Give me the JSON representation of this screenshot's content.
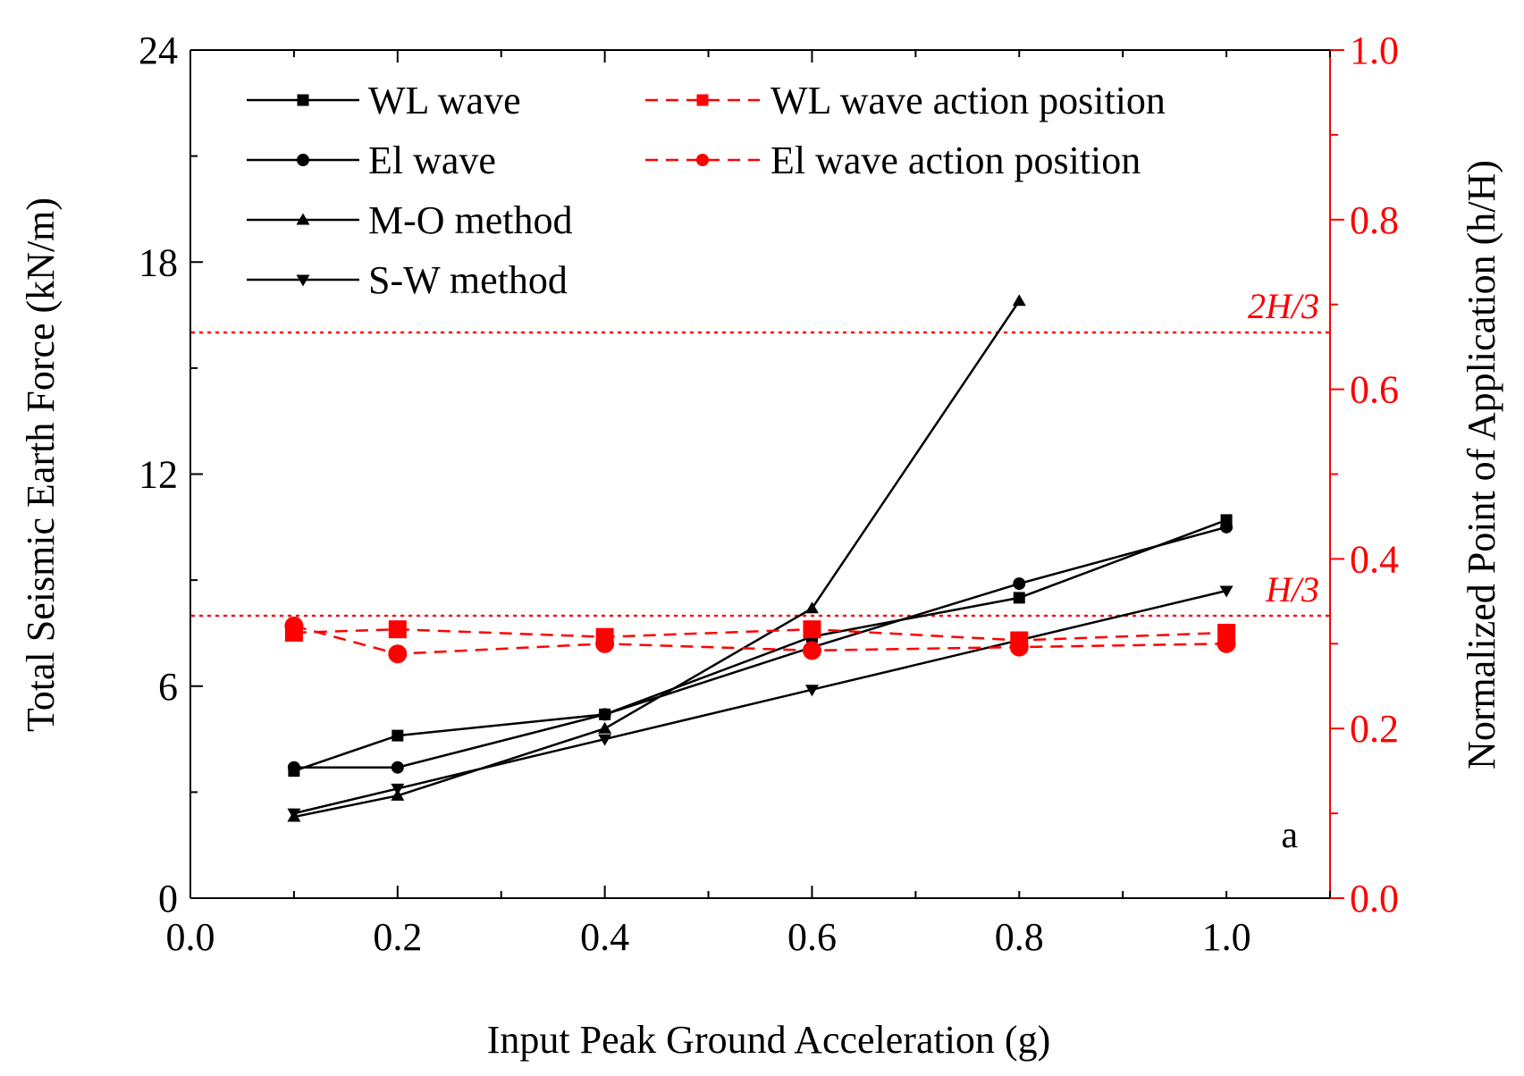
{
  "chart_data": {
    "type": "line",
    "panel_label": "a",
    "xlabel": "Input Peak Ground Acceleration (g)",
    "ylabel": "Total Seismic Earth Force  (kN/m)",
    "y2label": "Normalized Point of Application (h/H)",
    "xlim": [
      0.0,
      1.1
    ],
    "ylim": [
      0,
      24
    ],
    "y2lim": [
      0.0,
      1.0
    ],
    "x_ticks": [
      0.0,
      0.2,
      0.4,
      0.6,
      0.8,
      1.0
    ],
    "x_tick_labels": [
      "0.0",
      "0.2",
      "0.4",
      "0.6",
      "0.8",
      "1.0"
    ],
    "y_ticks": [
      0,
      6,
      12,
      18,
      24
    ],
    "y_tick_labels": [
      "0",
      "6",
      "12",
      "18",
      "24"
    ],
    "y2_ticks": [
      0.0,
      0.2,
      0.4,
      0.6,
      0.8,
      1.0
    ],
    "y2_tick_labels": [
      "0.0",
      "0.2",
      "0.4",
      "0.6",
      "0.8",
      "1.0"
    ],
    "legend_position": "top-left",
    "series": [
      {
        "name": "WL wave",
        "axis": "left",
        "marker": "square",
        "dashed": false,
        "color": "#000000",
        "x": [
          0.1,
          0.2,
          0.4,
          0.6,
          0.8,
          1.0
        ],
        "values": [
          3.6,
          4.6,
          5.2,
          7.4,
          8.5,
          10.7
        ]
      },
      {
        "name": "El wave",
        "axis": "left",
        "marker": "circle",
        "dashed": false,
        "color": "#000000",
        "x": [
          0.1,
          0.2,
          0.4,
          0.6,
          0.8,
          1.0
        ],
        "values": [
          3.7,
          3.7,
          5.2,
          7.1,
          8.9,
          10.5
        ]
      },
      {
        "name": "M-O method",
        "axis": "left",
        "marker": "triangle-up",
        "dashed": false,
        "color": "#000000",
        "x": [
          0.1,
          0.2,
          0.4,
          0.6,
          0.8
        ],
        "values": [
          2.3,
          2.9,
          4.8,
          8.2,
          16.9
        ]
      },
      {
        "name": "S-W method",
        "axis": "left",
        "marker": "triangle-down",
        "dashed": false,
        "color": "#000000",
        "x": [
          0.1,
          0.2,
          0.4,
          0.6,
          0.8,
          1.0
        ],
        "values": [
          2.4,
          3.1,
          4.5,
          5.9,
          7.3,
          8.7
        ]
      },
      {
        "name": "WL wave action position",
        "axis": "right",
        "marker": "square",
        "dashed": true,
        "color": "#ff0000",
        "x": [
          0.1,
          0.2,
          0.4,
          0.6,
          0.8,
          1.0
        ],
        "values": [
          0.313,
          0.317,
          0.308,
          0.317,
          0.304,
          0.313
        ]
      },
      {
        "name": "El wave action position",
        "axis": "right",
        "marker": "circle",
        "dashed": true,
        "color": "#ff0000",
        "x": [
          0.1,
          0.2,
          0.4,
          0.6,
          0.8,
          1.0
        ],
        "values": [
          0.321,
          0.288,
          0.3,
          0.292,
          0.296,
          0.3
        ]
      }
    ],
    "reference_lines": [
      {
        "label": "2H/3",
        "value": 0.667,
        "axis": "right",
        "color": "#ff0000"
      },
      {
        "label": "H/3",
        "value": 0.333,
        "axis": "right",
        "color": "#ff0000"
      }
    ]
  }
}
